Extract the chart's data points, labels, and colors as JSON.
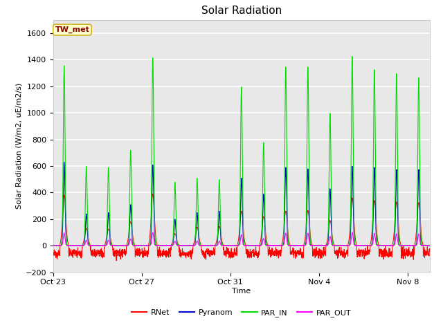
{
  "title": "Solar Radiation",
  "xlabel": "Time",
  "ylabel": "Solar Radiation (W/m2, uE/m2/s)",
  "ylim": [
    -200,
    1700
  ],
  "yticks": [
    -200,
    0,
    200,
    400,
    600,
    800,
    1000,
    1200,
    1400,
    1600
  ],
  "station_label": "TW_met",
  "line_colors": {
    "RNet": "#ff0000",
    "Pyranom": "#0000cc",
    "PAR_IN": "#00dd00",
    "PAR_OUT": "#ff00ff"
  },
  "fig_bg_color": "#ffffff",
  "plot_bg_color": "#e8e8e8",
  "grid_color": "#ffffff",
  "n_days": 17,
  "xtick_labels": [
    "Oct 23",
    "Oct 27",
    "Oct 31",
    "Nov 4",
    "Nov 8"
  ],
  "xtick_positions": [
    0,
    4,
    8,
    12,
    16
  ],
  "title_fontsize": 11,
  "axis_label_fontsize": 8,
  "tick_fontsize": 8,
  "legend_fontsize": 8
}
